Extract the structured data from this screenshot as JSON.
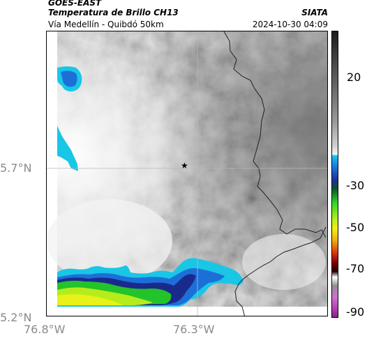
{
  "header": {
    "title_line1": "GOES-EAST",
    "title_line2": "Temperatura de Brillo CH13",
    "subtitle": "Vía Medellín - Quibdó 50km",
    "brand": "SIATA",
    "timestamp": "2024-10-30 04:09"
  },
  "map": {
    "lat_ticks": [
      "5.7°N",
      "5.2°N"
    ],
    "lon_ticks": [
      "76.8°W",
      "76.3°W"
    ],
    "marker_symbol": "★",
    "colors": {
      "cold_cyan": "#19c6e6",
      "cold_blue": "#1d6fd8",
      "deep_blue": "#1a2a8c",
      "green": "#23c32a",
      "yellow": "#e8f21a",
      "border_line": "#222222"
    }
  },
  "colorbar": {
    "labels": [
      "20",
      "-30",
      "-50",
      "-70",
      "-90"
    ]
  }
}
